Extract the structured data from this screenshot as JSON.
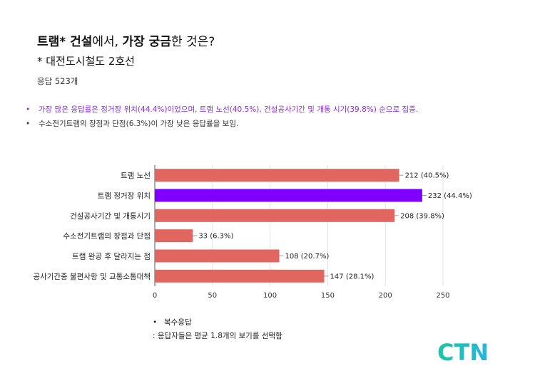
{
  "header": {
    "title_part1": "트램* 건설",
    "title_part2": "에서, ",
    "title_part3": "가장 궁금",
    "title_part4": "한 것은?",
    "subtitle": "* 대전도시철도 2호선",
    "responses": "응답 523개"
  },
  "notes": [
    "가장 많은 응답률은 정거장 위치(44.4%)이었으며, 트램 노선(40.5%), 건설공사기간 및 개통 시기(39.8%) 순으로 집중.",
    "수소전기트램의 장점과 단점(6.3%)이 가장 낮은 응답률을 보임."
  ],
  "footnote": {
    "line1": "복수응답",
    "line2": ": 응답자들은 평균 1.8개의 보기를 선택함"
  },
  "logo": "CTN",
  "colors": {
    "bar_default": "#e0665f",
    "bar_highlight": "#7f00ff",
    "note_highlight": "#8a2be2",
    "logo_start": "#1bc6a4",
    "logo_end": "#26b6e0"
  },
  "chart_data": {
    "type": "bar",
    "orientation": "horizontal",
    "categories": [
      "트램 노선",
      "트램 정거장 위치",
      "건설공사기간 및 개통시기",
      "수소전기트램의 장점과 단점",
      "트램 완공 후 달라지는 점",
      "공사기간중 불편사항 및 교통소통대책"
    ],
    "values": [
      212,
      232,
      208,
      33,
      108,
      147
    ],
    "data_labels": [
      "212 (40.5%)",
      "232 (44.4%)",
      "208 (39.8%)",
      "33 (6.3%)",
      "108 (20.7%)",
      "147 (28.1%)"
    ],
    "highlight_index": 1,
    "xlim": [
      0,
      250
    ],
    "xticks": [
      0,
      50,
      100,
      150,
      200,
      250
    ],
    "grid": true
  }
}
